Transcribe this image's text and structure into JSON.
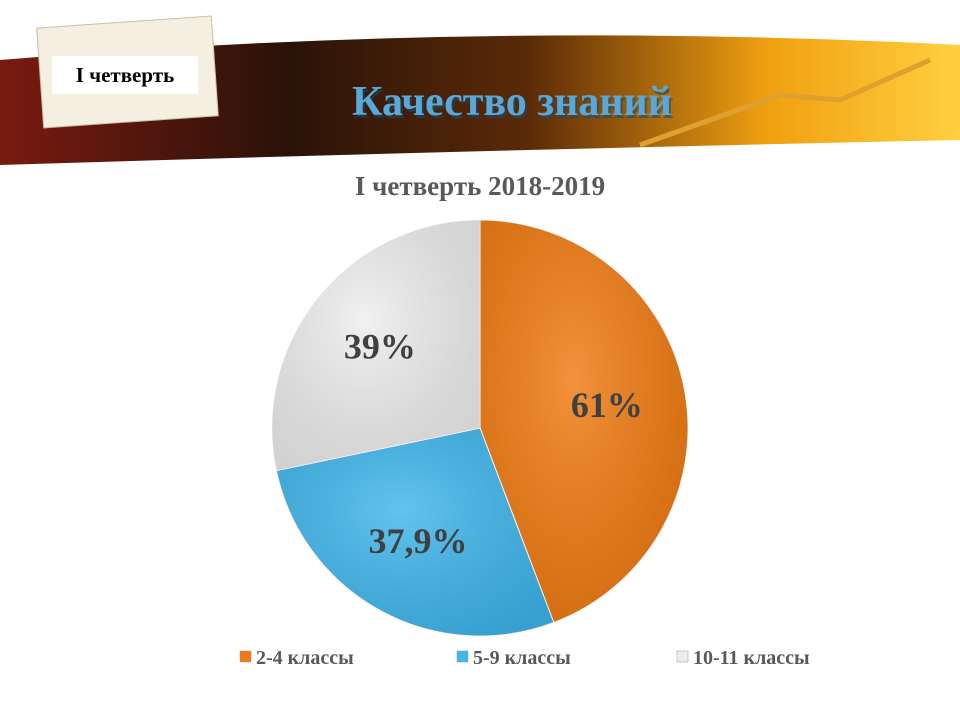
{
  "slide": {
    "badge": "I четверть",
    "title": "Качество знаний"
  },
  "chart_data": {
    "type": "pie",
    "title": "I четверть 2018-2019",
    "categories": [
      "2-4 классы",
      "5-9 классы",
      "10-11 классы"
    ],
    "values": [
      61,
      37.9,
      39
    ],
    "value_labels": [
      "61%",
      "37,9%",
      "39%"
    ],
    "colors": [
      "#f07a10",
      "#3fb6ec",
      "#eeeeee"
    ],
    "legend": "bottom"
  }
}
